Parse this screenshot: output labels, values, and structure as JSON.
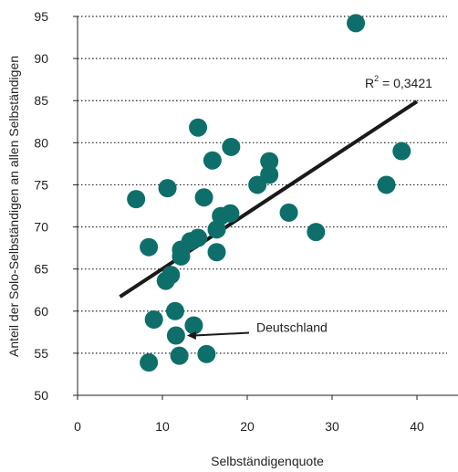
{
  "chart_data": {
    "type": "scatter",
    "xlabel": "Selbständigenquote",
    "ylabel": "Anteil der Solo-Selbständigen an allen Selbständigen",
    "xlim": [
      0,
      45
    ],
    "ylim": [
      50,
      95
    ],
    "x_ticks": [
      "0",
      "10",
      "20",
      "30",
      "40"
    ],
    "y_ticks": [
      "50",
      "55",
      "60",
      "65",
      "70",
      "75",
      "80",
      "85",
      "90",
      "95"
    ],
    "grid": "horizontal dotted",
    "marker_color": "#0e6f6a",
    "line_color": "#1a1a1a",
    "points": [
      {
        "x": 8.4,
        "y": 53.9
      },
      {
        "x": 9.0,
        "y": 59.0
      },
      {
        "x": 11.6,
        "y": 57.1
      },
      {
        "x": 12.0,
        "y": 54.7
      },
      {
        "x": 13.7,
        "y": 58.3
      },
      {
        "x": 15.2,
        "y": 54.9
      },
      {
        "x": 11.5,
        "y": 60.0
      },
      {
        "x": 10.4,
        "y": 63.6
      },
      {
        "x": 11.0,
        "y": 64.3
      },
      {
        "x": 8.4,
        "y": 67.6
      },
      {
        "x": 12.2,
        "y": 66.5
      },
      {
        "x": 12.2,
        "y": 67.3
      },
      {
        "x": 13.3,
        "y": 68.3
      },
      {
        "x": 14.2,
        "y": 68.7
      },
      {
        "x": 16.4,
        "y": 67.0
      },
      {
        "x": 16.4,
        "y": 69.7
      },
      {
        "x": 16.9,
        "y": 71.3
      },
      {
        "x": 18.0,
        "y": 71.6
      },
      {
        "x": 6.9,
        "y": 73.3
      },
      {
        "x": 10.6,
        "y": 74.6
      },
      {
        "x": 14.9,
        "y": 73.5
      },
      {
        "x": 15.9,
        "y": 77.9
      },
      {
        "x": 14.2,
        "y": 81.8
      },
      {
        "x": 18.1,
        "y": 79.5
      },
      {
        "x": 21.2,
        "y": 75.0
      },
      {
        "x": 22.6,
        "y": 76.2
      },
      {
        "x": 22.6,
        "y": 77.8
      },
      {
        "x": 24.9,
        "y": 71.7
      },
      {
        "x": 28.1,
        "y": 69.4
      },
      {
        "x": 32.8,
        "y": 94.2
      },
      {
        "x": 36.4,
        "y": 75.0
      },
      {
        "x": 38.2,
        "y": 79.0
      }
    ],
    "trendline": {
      "x": [
        5.0,
        40.0
      ],
      "y": [
        61.7,
        84.9
      ]
    },
    "r_squared": {
      "prefix": "R",
      "sup": "2",
      "suffix": " = 0,3421"
    },
    "annotation": {
      "label": "Deutschland",
      "x": 11.6,
      "y": 57.1
    }
  }
}
